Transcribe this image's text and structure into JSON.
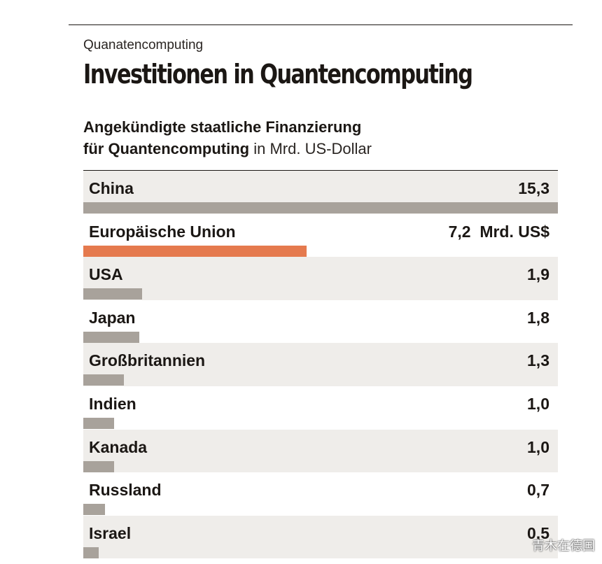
{
  "header": {
    "kicker": "Quanatencomputing",
    "headline": "Investitionen in Quantencomputing"
  },
  "chart_data": {
    "type": "bar",
    "orientation": "horizontal",
    "subtitle_bold": "Angekündigte staatliche Finanzierung",
    "subtitle_bold_2": "für Quantencomputing",
    "unit": "in Mrd. US-Dollar",
    "categories": [
      "China",
      "Europäische Union",
      "USA",
      "Japan",
      "Großbritannien",
      "Indien",
      "Kanada",
      "Russland",
      "Israel"
    ],
    "values": [
      15.3,
      7.2,
      1.9,
      1.8,
      1.3,
      1.0,
      1.0,
      0.7,
      0.5
    ],
    "value_labels": [
      "15,3",
      "7,2  Mrd. US$",
      "1,9",
      "1,8",
      "1,3",
      "1,0",
      "1,0",
      "0,7",
      "0,5"
    ],
    "highlight_category": "Europäische Union",
    "colors": {
      "default": "#a8a29b",
      "highlight": "#e57a4e",
      "row_shade": "#efedea"
    },
    "xlim": [
      0,
      15.3
    ]
  },
  "watermark": "青木在德国"
}
